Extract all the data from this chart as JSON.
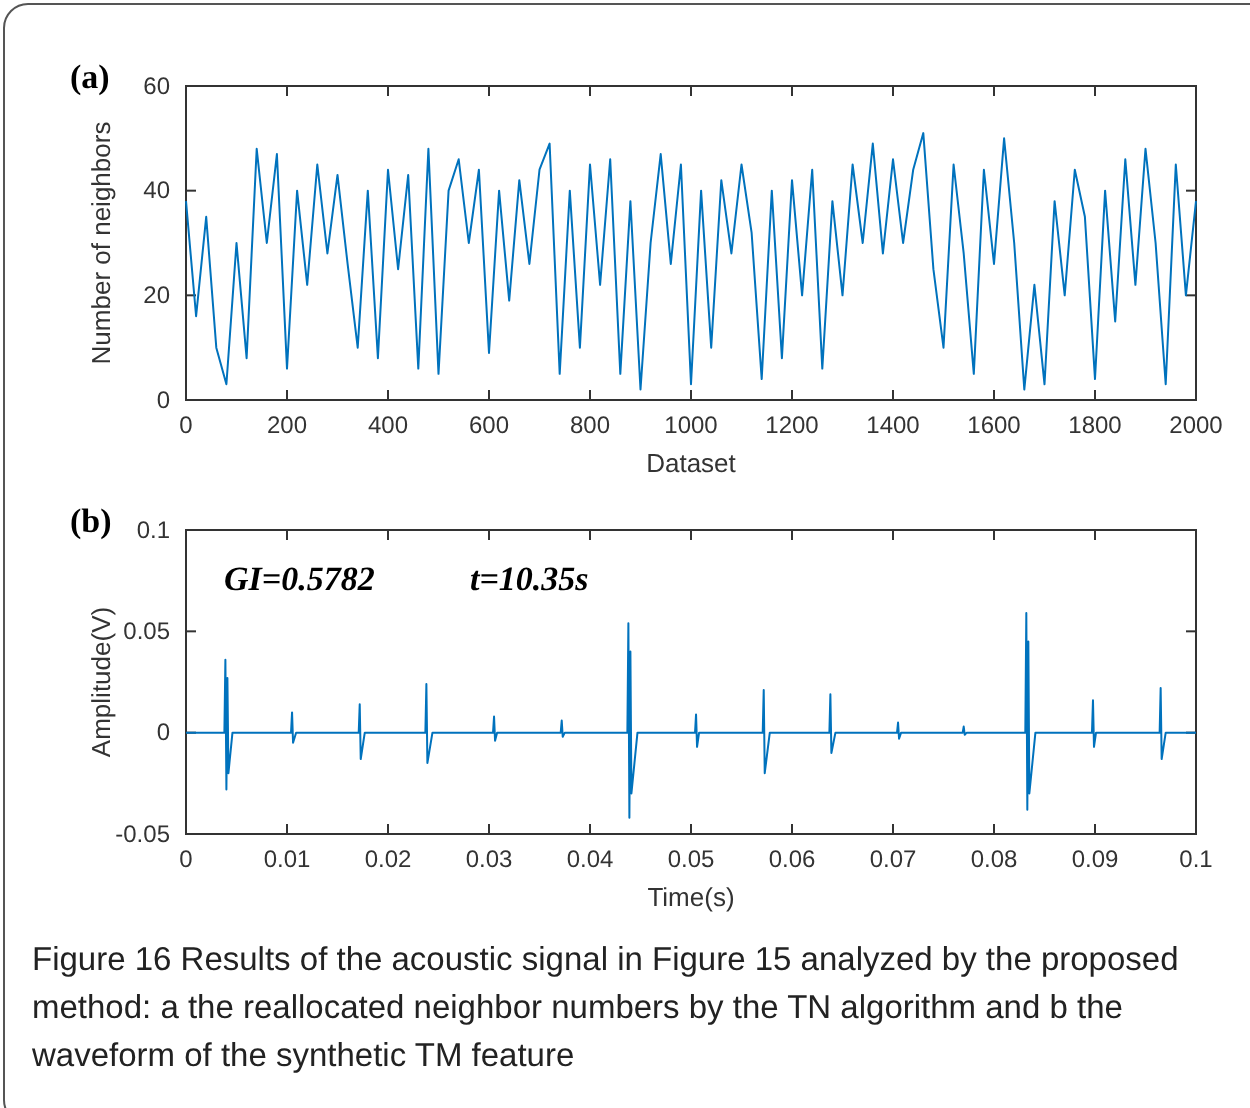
{
  "chart_data": [
    {
      "type": "line",
      "title": "(a)",
      "xlabel": "Dataset",
      "ylabel": "Number of neighbors",
      "xlim": [
        0,
        2000
      ],
      "ylim": [
        0,
        60
      ],
      "xticks": [
        0,
        200,
        400,
        600,
        800,
        1000,
        1200,
        1400,
        1600,
        1800,
        2000
      ],
      "yticks": [
        0,
        20,
        40,
        60
      ],
      "x": [
        0,
        20,
        40,
        60,
        80,
        100,
        120,
        140,
        160,
        180,
        200,
        220,
        240,
        260,
        280,
        300,
        320,
        340,
        360,
        380,
        400,
        420,
        440,
        460,
        480,
        500,
        520,
        540,
        560,
        580,
        600,
        620,
        640,
        660,
        680,
        700,
        720,
        740,
        760,
        780,
        800,
        820,
        840,
        860,
        880,
        900,
        920,
        940,
        960,
        980,
        1000,
        1020,
        1040,
        1060,
        1080,
        1100,
        1120,
        1140,
        1160,
        1180,
        1200,
        1220,
        1240,
        1260,
        1280,
        1300,
        1320,
        1340,
        1360,
        1380,
        1400,
        1420,
        1440,
        1460,
        1480,
        1500,
        1520,
        1540,
        1560,
        1580,
        1600,
        1620,
        1640,
        1660,
        1680,
        1700,
        1720,
        1740,
        1760,
        1780,
        1800,
        1820,
        1840,
        1860,
        1880,
        1900,
        1920,
        1940,
        1960,
        1980,
        2000
      ],
      "series": [
        {
          "color": "#0072bd",
          "values": [
            38,
            16,
            35,
            10,
            3,
            30,
            8,
            48,
            30,
            47,
            6,
            40,
            22,
            45,
            28,
            43,
            26,
            10,
            40,
            8,
            44,
            25,
            43,
            6,
            48,
            5,
            40,
            46,
            30,
            44,
            9,
            40,
            19,
            42,
            26,
            44,
            49,
            5,
            40,
            10,
            45,
            22,
            46,
            5,
            38,
            2,
            30,
            47,
            26,
            45,
            3,
            40,
            10,
            42,
            28,
            45,
            32,
            4,
            40,
            8,
            42,
            20,
            44,
            6,
            38,
            20,
            45,
            30,
            49,
            28,
            46,
            30,
            44,
            51,
            25,
            10,
            45,
            28,
            5,
            44,
            26,
            50,
            30,
            2,
            22,
            3,
            38,
            20,
            44,
            35,
            4,
            40,
            15,
            46,
            22,
            48,
            30,
            3,
            45,
            20,
            38
          ]
        }
      ]
    },
    {
      "type": "line",
      "title": "(b)",
      "xlabel": "Time(s)",
      "ylabel": "Amplitude(V)",
      "xlim": [
        0,
        0.1
      ],
      "ylim": [
        -0.05,
        0.1
      ],
      "xticks": [
        0,
        0.01,
        0.02,
        0.03,
        0.04,
        0.05,
        0.06,
        0.07,
        0.08,
        0.09,
        0.1
      ],
      "yticks": [
        -0.05,
        0,
        0.05,
        0.1
      ],
      "annotations": [
        "GI=0.5782",
        "t=10.35s",
        "Figure 16  Results of the acoustic signal in Figure 15 analyzed by the proposed method: a the reallocated neighbor numbers by the TN algorithm and b the waveform of the synthetic TM feature"
      ],
      "x": [
        0,
        0.0038,
        0.0039,
        0.004,
        0.0041,
        0.0042,
        0.0046,
        0.0104,
        0.0105,
        0.0106,
        0.0109,
        0.0171,
        0.0172,
        0.0173,
        0.0177,
        0.0237,
        0.0238,
        0.0239,
        0.0244,
        0.0304,
        0.0305,
        0.0306,
        0.0308,
        0.0371,
        0.0372,
        0.0373,
        0.0375,
        0.0437,
        0.0438,
        0.0439,
        0.044,
        0.0441,
        0.0447,
        0.0504,
        0.0505,
        0.0506,
        0.0508,
        0.0571,
        0.0572,
        0.0573,
        0.0578,
        0.0637,
        0.0638,
        0.0639,
        0.0643,
        0.0704,
        0.0705,
        0.0706,
        0.0708,
        0.0769,
        0.077,
        0.0771,
        0.0773,
        0.0831,
        0.0832,
        0.0833,
        0.0834,
        0.0835,
        0.0841,
        0.0897,
        0.0898,
        0.0899,
        0.0901,
        0.0964,
        0.0965,
        0.0966,
        0.097,
        0.1
      ],
      "series": [
        {
          "color": "#0072bd",
          "values": [
            0,
            0,
            0.036,
            -0.028,
            0.027,
            -0.02,
            0,
            0,
            0.01,
            -0.005,
            0,
            0,
            0.014,
            -0.013,
            0,
            0,
            0.024,
            -0.015,
            0,
            0,
            0.008,
            -0.004,
            0,
            0,
            0.006,
            -0.002,
            0,
            0,
            0.054,
            -0.042,
            0.04,
            -0.03,
            0,
            0,
            0.009,
            -0.007,
            0,
            0,
            0.021,
            -0.02,
            0,
            0,
            0.019,
            -0.01,
            0,
            0,
            0.005,
            -0.003,
            0,
            0,
            0.003,
            -0.001,
            0,
            0,
            0.059,
            -0.038,
            0.045,
            -0.03,
            0,
            0,
            0.016,
            -0.007,
            0,
            0,
            0.022,
            -0.013,
            0,
            0
          ]
        }
      ]
    }
  ]
}
